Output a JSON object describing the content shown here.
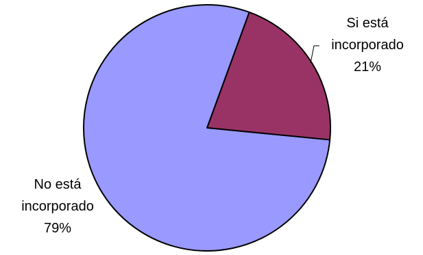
{
  "chart_data": {
    "type": "pie",
    "title": "",
    "slices": [
      {
        "label_lines": [
          "Si está",
          "incorporado"
        ],
        "value": 21,
        "value_label": "21%",
        "color": "#993366"
      },
      {
        "label_lines": [
          "No está",
          "incorporado"
        ],
        "value": 79,
        "value_label": "79%",
        "color": "#9999ff"
      }
    ],
    "start_angle_deg": 20,
    "direction": "clockwise",
    "legend": "none",
    "outline_color": "#000000"
  }
}
